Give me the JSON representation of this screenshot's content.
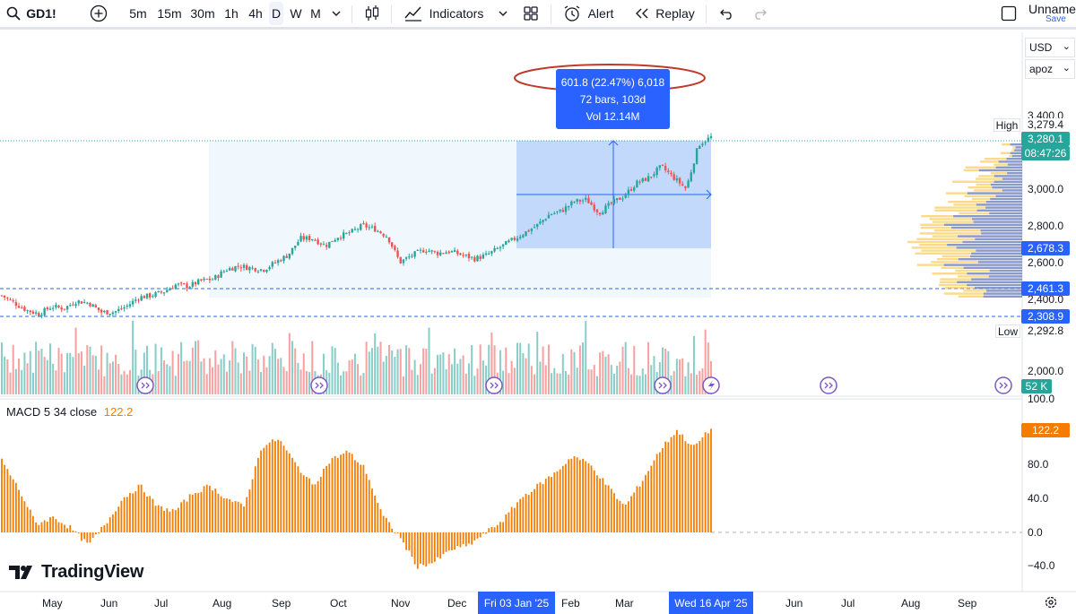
{
  "toolbar": {
    "symbol": "GD1!",
    "timeframes": [
      "5m",
      "15m",
      "30m",
      "1h",
      "4h",
      "D",
      "W",
      "M"
    ],
    "active_timeframe": "D",
    "indicators_label": "Indicators",
    "alert_label": "Alert",
    "replay_label": "Replay",
    "layout_name": "Unnamed",
    "save_label": "Save"
  },
  "currency": {
    "unit": "USD",
    "scale_mode": "apoz"
  },
  "price_axis": {
    "ticks": [
      "3,400.0",
      "3,000.0",
      "2,800.0",
      "2,600.0",
      "2,400.0",
      "2,000.0"
    ],
    "high_label": "High",
    "high_value": "3,279.4",
    "low_label": "Low",
    "low_value": "2,292.8",
    "last_price": "3,280.1",
    "countdown": "08:47:26",
    "range_low": "2,678.3",
    "level_1": "2,461.3",
    "level_2": "2,308.9",
    "volume_value": "52 K"
  },
  "measure": {
    "line1": "601.8 (22.47%) 6,018",
    "line2": "72 bars, 103d",
    "line3": "Vol 12.14M"
  },
  "macd": {
    "legend": "MACD 5 34 close",
    "value": "122.2",
    "ticks": [
      "100.0",
      "80.0",
      "40.0",
      "0.0",
      "−40.0"
    ]
  },
  "time_axis": {
    "months": [
      "May",
      "Jun",
      "Jul",
      "Aug",
      "Sep",
      "Oct",
      "Nov",
      "Dec",
      "Feb",
      "Mar",
      "Jun",
      "Jul",
      "Aug",
      "Sep"
    ],
    "start_badge": "Fri 03 Jan '25",
    "end_badge": "Wed 16 Apr '25"
  },
  "logo": "TradingView",
  "colors": {
    "up": "#26a69a",
    "down": "#ef5350",
    "accent": "#2962ff",
    "macd": "#f57c00",
    "highlight_ellipse": "#c0392b"
  },
  "chart_data": {
    "type": "candlestick",
    "symbol": "GD1!",
    "interval": "D",
    "close_path": [
      2420,
      2380,
      2340,
      2320,
      2360,
      2350,
      2390,
      2380,
      2330,
      2330,
      2360,
      2410,
      2420,
      2440,
      2480,
      2470,
      2500,
      2510,
      2560,
      2580,
      2570,
      2560,
      2600,
      2640,
      2730,
      2730,
      2690,
      2740,
      2760,
      2800,
      2780,
      2740,
      2600,
      2640,
      2670,
      2650,
      2660,
      2640,
      2620,
      2640,
      2680,
      2720,
      2760,
      2800,
      2860,
      2880,
      2930,
      2940,
      2870,
      2920,
      2960,
      3030,
      3060,
      3120,
      3060,
      3000,
      3240,
      3280
    ],
    "price_range": [
      2000,
      3400
    ],
    "last": 3280.1,
    "high": 3279.4,
    "low": 2292.8,
    "macd_path": [
      85,
      50,
      10,
      18,
      5,
      -15,
      10,
      40,
      55,
      30,
      25,
      45,
      55,
      40,
      30,
      100,
      110,
      80,
      55,
      85,
      95,
      75,
      20,
      -5,
      -40,
      -35,
      -20,
      -15,
      0,
      15,
      40,
      55,
      70,
      90,
      80,
      55,
      30,
      60,
      95,
      120,
      100,
      122
    ]
  }
}
